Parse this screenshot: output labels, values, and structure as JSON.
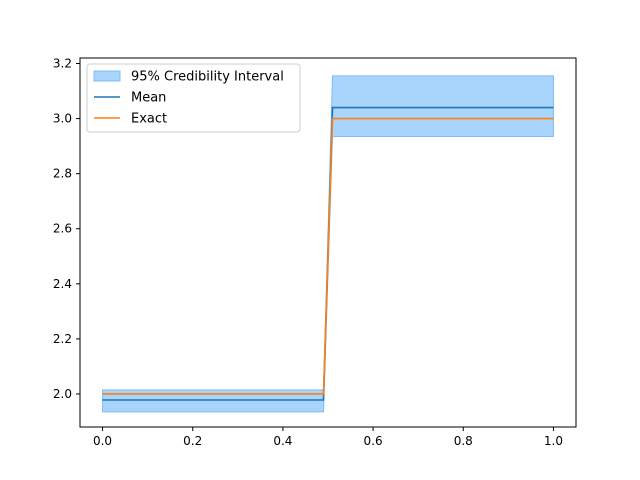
{
  "chart_data": {
    "type": "line",
    "xlim": [
      -0.05,
      1.05
    ],
    "ylim": [
      1.88,
      3.22
    ],
    "x_ticks": [
      0.0,
      0.2,
      0.4,
      0.6,
      0.8,
      1.0
    ],
    "x_tick_labels": [
      "0.0",
      "0.2",
      "0.4",
      "0.6",
      "0.8",
      "1.0"
    ],
    "y_ticks": [
      2.0,
      2.2,
      2.4,
      2.6,
      2.8,
      3.0,
      3.2
    ],
    "y_tick_labels": [
      "2.0",
      "2.2",
      "2.4",
      "2.6",
      "2.8",
      "3.0",
      "3.2"
    ],
    "grid": false,
    "legend_position": "top-left",
    "series": [
      {
        "name": "95% Credibility Interval",
        "kind": "band",
        "color": "#a9d4fb",
        "edge_color": "#7fbdf5",
        "x": [
          0.0,
          0.49,
          0.51,
          1.0
        ],
        "lower": [
          1.935,
          1.935,
          2.935,
          2.935
        ],
        "upper": [
          2.015,
          2.015,
          3.155,
          3.155
        ]
      },
      {
        "name": "Mean",
        "kind": "line",
        "color": "#1f77b4",
        "x": [
          0.0,
          0.49,
          0.51,
          1.0
        ],
        "y": [
          1.978,
          1.978,
          3.04,
          3.04
        ]
      },
      {
        "name": "Exact",
        "kind": "line",
        "color": "#ff7f0e",
        "x": [
          0.0,
          0.49,
          0.51,
          1.0
        ],
        "y": [
          2.0,
          2.0,
          3.0,
          3.0
        ]
      }
    ]
  }
}
